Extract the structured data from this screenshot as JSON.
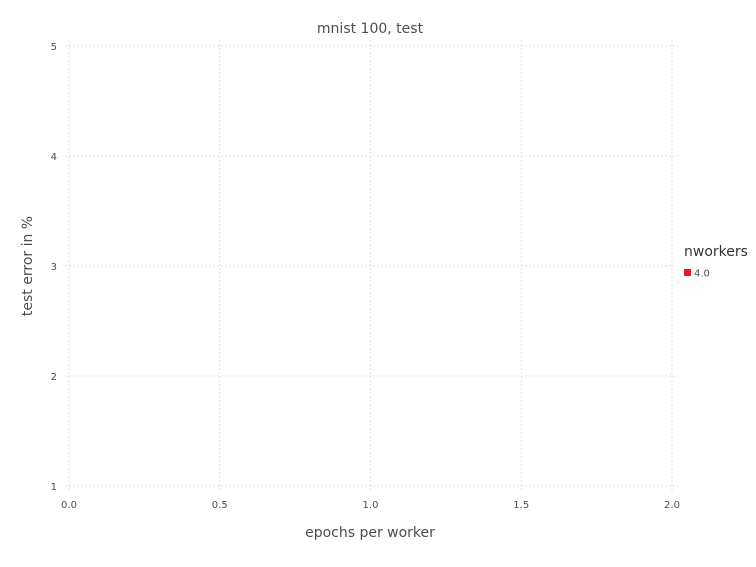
{
  "chart_data": {
    "type": "line",
    "title": "mnist 100, test",
    "xlabel": "epochs per worker",
    "ylabel": "test error in %",
    "xlim": [
      0,
      2
    ],
    "ylim": [
      1,
      5
    ],
    "x_ticks": [
      "0.0",
      "0.5",
      "1.0",
      "1.5",
      "2.0"
    ],
    "y_ticks": [
      "1",
      "2",
      "3",
      "4",
      "5"
    ],
    "grid": true,
    "legend": {
      "title": "nworkers",
      "position": "right",
      "entries": [
        {
          "label": "4.0",
          "color": "#e41a1c"
        }
      ]
    },
    "series": [
      {
        "name": "4.0",
        "color": "#e41a1c",
        "x": [],
        "y": []
      }
    ]
  }
}
